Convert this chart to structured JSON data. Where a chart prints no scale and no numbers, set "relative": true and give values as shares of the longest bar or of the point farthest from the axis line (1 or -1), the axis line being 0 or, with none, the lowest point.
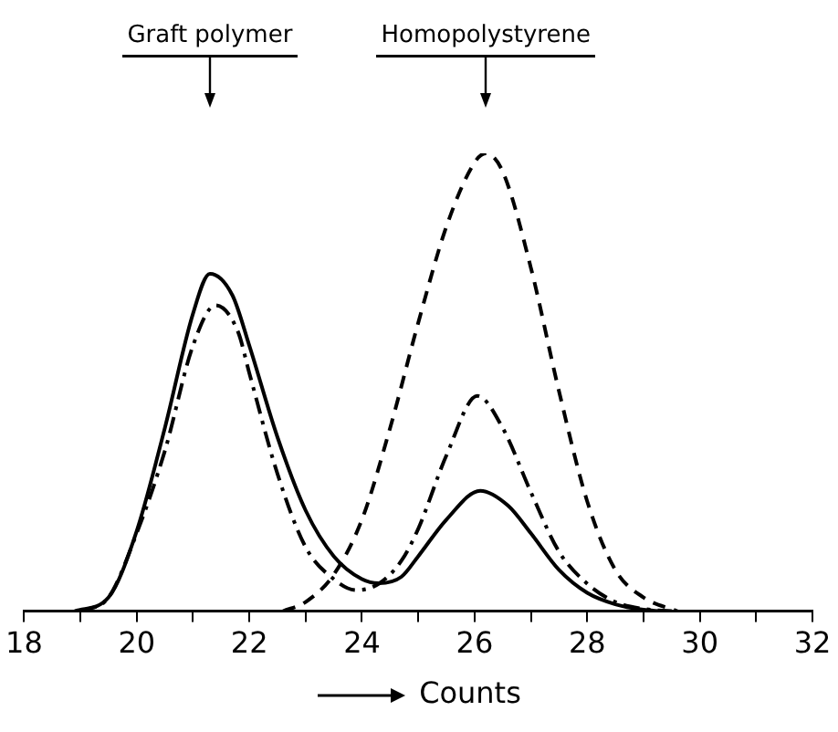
{
  "chart_data": {
    "type": "line",
    "relative": true,
    "xlabel": "Counts",
    "xlim": [
      18,
      32
    ],
    "xticks": [
      18,
      {
        "value": 19,
        "label": null
      },
      20,
      {
        "value": 21,
        "label": null
      },
      22,
      {
        "value": 23,
        "label": null
      },
      24,
      {
        "value": 25,
        "label": null
      },
      26,
      {
        "value": 27,
        "label": null
      },
      28,
      {
        "value": 29,
        "label": null
      },
      30,
      {
        "value": 31,
        "label": null
      },
      32
    ],
    "grid": false,
    "legend": false,
    "marker": "none",
    "annotations": [
      "Graft polymer",
      "Homopolystyrene"
    ],
    "series": [
      {
        "color": "#000000",
        "line_style": "solid",
        "x": [
          18.9,
          19.5,
          20,
          20.5,
          21,
          21.3,
          21.7,
          22,
          22.5,
          23,
          23.5,
          24,
          24.3,
          24.7,
          25,
          25.5,
          26.1,
          26.6,
          27,
          27.5,
          28,
          28.5,
          29,
          29.3
        ],
        "values": [
          0,
          0.03,
          0.175,
          0.4,
          0.65,
          0.737,
          0.69,
          0.58,
          0.38,
          0.22,
          0.12,
          0.07,
          0.061,
          0.075,
          0.12,
          0.2,
          0.263,
          0.23,
          0.17,
          0.09,
          0.04,
          0.015,
          0.003,
          0
        ]
      },
      {
        "color": "#000000",
        "line_style": "dashdot",
        "x": [
          19,
          19.5,
          20,
          20.5,
          21,
          21.4,
          21.8,
          22,
          22.5,
          23,
          23.5,
          23.9,
          24.3,
          24.7,
          25,
          25.5,
          26.05,
          26.5,
          27,
          27.5,
          28,
          28.5,
          29,
          29.5
        ],
        "values": [
          0,
          0.03,
          0.17,
          0.35,
          0.58,
          0.668,
          0.61,
          0.52,
          0.3,
          0.14,
          0.07,
          0.046,
          0.06,
          0.11,
          0.18,
          0.34,
          0.47,
          0.4,
          0.26,
          0.13,
          0.06,
          0.02,
          0.005,
          0
        ]
      },
      {
        "color": "#000000",
        "line_style": "dashed",
        "x": [
          22.6,
          23,
          23.5,
          24,
          24.5,
          25,
          25.5,
          26,
          26.2,
          26.5,
          27,
          27.5,
          28,
          28.5,
          29,
          29.6
        ],
        "values": [
          0,
          0.02,
          0.08,
          0.2,
          0.4,
          0.63,
          0.84,
          0.98,
          1,
          0.96,
          0.75,
          0.48,
          0.24,
          0.09,
          0.03,
          0
        ]
      }
    ]
  }
}
